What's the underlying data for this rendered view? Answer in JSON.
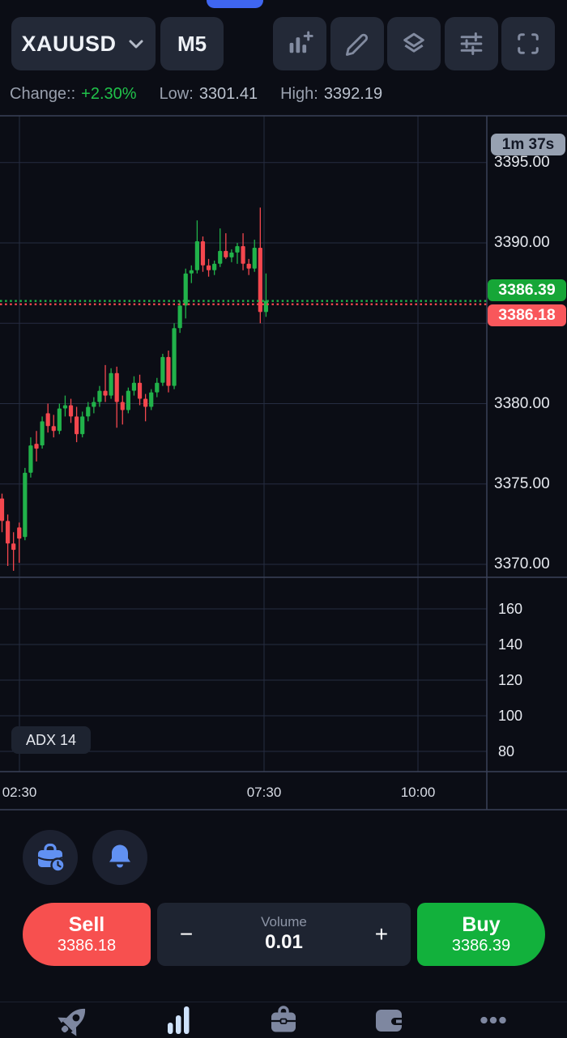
{
  "header": {
    "symbol": "XAUUSD",
    "timeframe": "M5",
    "stats": {
      "change_label": "Change::",
      "change_value": "+2.30%",
      "low_label": "Low:",
      "low_value": "3301.41",
      "high_label": "High:",
      "high_value": "3392.19"
    }
  },
  "chart": {
    "timer": "1m 37s",
    "ask_badge": "3386.39",
    "bid_badge": "3386.18",
    "indicator_badge": "ADX 14"
  },
  "chart_data": {
    "type": "candlestick",
    "symbol": "XAUUSD",
    "interval": "M5",
    "ask": 3386.39,
    "bid": 3386.18,
    "price_ylim": [
      3369.5,
      3397.9
    ],
    "grid": true,
    "price_gridlines": [
      3395,
      3390,
      3385,
      3380,
      3375,
      3370
    ],
    "price_labels": [
      {
        "text": "3395.00",
        "value": 3395
      },
      {
        "text": "3390.00",
        "value": 3390
      },
      {
        "text": "3380.00",
        "value": 3380
      },
      {
        "text": "3375.00",
        "value": 3375
      },
      {
        "text": "3370.00",
        "value": 3370
      }
    ],
    "time_labels": [
      {
        "text": "02:30",
        "x": 24
      },
      {
        "text": "07:30",
        "x": 326
      },
      {
        "text": "10:00",
        "x": 516
      }
    ],
    "vertical_gridlines_x": [
      24,
      326,
      516
    ],
    "indicator": {
      "name": "ADX",
      "period": 14,
      "ylim": [
        70,
        170
      ],
      "ticks": [
        {
          "text": "160",
          "value": 160
        },
        {
          "text": "140",
          "value": 140
        },
        {
          "text": "120",
          "value": 120
        },
        {
          "text": "100",
          "value": 100
        },
        {
          "text": "80",
          "value": 80
        }
      ]
    },
    "candles_ohlc": [
      [
        3374.1,
        3374.4,
        3372.0,
        3372.7
      ],
      [
        3372.7,
        3373.1,
        3369.9,
        3371.3
      ],
      [
        3371.3,
        3372.0,
        3369.6,
        3370.9
      ],
      [
        3372.3,
        3372.6,
        3370.1,
        3371.6
      ],
      [
        3371.7,
        3376.0,
        3371.5,
        3375.7
      ],
      [
        3375.7,
        3377.9,
        3375.4,
        3377.4
      ],
      [
        3377.5,
        3378.3,
        3376.4,
        3377.2
      ],
      [
        3377.4,
        3379.2,
        3377.2,
        3378.9
      ],
      [
        3379.4,
        3380.0,
        3378.2,
        3378.6
      ],
      [
        3378.6,
        3379.3,
        3377.9,
        3378.3
      ],
      [
        3378.3,
        3380.0,
        3378.1,
        3379.7
      ],
      [
        3379.7,
        3380.5,
        3379.2,
        3379.9
      ],
      [
        3379.9,
        3380.3,
        3378.8,
        3379.2
      ],
      [
        3379.2,
        3379.8,
        3377.6,
        3378.1
      ],
      [
        3378.1,
        3379.5,
        3377.9,
        3379.2
      ],
      [
        3379.2,
        3380.1,
        3378.9,
        3379.8
      ],
      [
        3379.8,
        3380.4,
        3379.4,
        3380.1
      ],
      [
        3380.1,
        3381.1,
        3379.8,
        3380.8
      ],
      [
        3380.8,
        3382.4,
        3380.1,
        3380.5
      ],
      [
        3380.5,
        3382.2,
        3380.3,
        3381.9
      ],
      [
        3381.9,
        3382.3,
        3378.5,
        3380.1
      ],
      [
        3380.1,
        3380.5,
        3378.7,
        3379.6
      ],
      [
        3379.6,
        3381.0,
        3379.4,
        3380.8
      ],
      [
        3380.8,
        3381.7,
        3380.5,
        3381.3
      ],
      [
        3381.3,
        3381.8,
        3379.9,
        3380.3
      ],
      [
        3380.3,
        3380.6,
        3378.9,
        3379.8
      ],
      [
        3379.8,
        3380.9,
        3379.6,
        3380.7
      ],
      [
        3380.7,
        3381.6,
        3380.4,
        3381.3
      ],
      [
        3381.3,
        3383.1,
        3381.1,
        3382.9
      ],
      [
        3382.9,
        3383.3,
        3380.7,
        3381.1
      ],
      [
        3381.1,
        3385.0,
        3380.9,
        3384.7
      ],
      [
        3384.7,
        3386.4,
        3384.4,
        3386.1
      ],
      [
        3386.1,
        3388.4,
        3385.3,
        3388.1
      ],
      [
        3388.1,
        3388.6,
        3387.5,
        3388.3
      ],
      [
        3388.3,
        3391.4,
        3388.1,
        3390.1
      ],
      [
        3390.1,
        3390.4,
        3388.2,
        3388.6
      ],
      [
        3388.6,
        3389.0,
        3387.9,
        3388.3
      ],
      [
        3388.3,
        3388.9,
        3388.0,
        3388.7
      ],
      [
        3388.7,
        3390.9,
        3388.5,
        3389.5
      ],
      [
        3389.5,
        3390.6,
        3389.0,
        3389.1
      ],
      [
        3389.1,
        3389.6,
        3388.8,
        3389.4
      ],
      [
        3389.4,
        3390.0,
        3388.7,
        3389.8
      ],
      [
        3389.8,
        3390.6,
        3388.3,
        3388.7
      ],
      [
        3388.7,
        3389.0,
        3388.0,
        3388.4
      ],
      [
        3388.4,
        3390.2,
        3388.2,
        3389.7
      ],
      [
        3389.7,
        3392.2,
        3385.0,
        3385.7
      ],
      [
        3385.7,
        3388.1,
        3385.4,
        3386.4
      ]
    ],
    "colors": {
      "up": "#21b24a",
      "down": "#f4474e",
      "ask_line": "#1db44a",
      "bid_line": "#f4474e",
      "grid": "#262d41",
      "border": "#3a4158"
    }
  },
  "trade": {
    "sell_label": "Sell",
    "sell_price": "3386.18",
    "minus": "−",
    "plus": "+",
    "volume_label": "Volume",
    "volume_value": "0.01",
    "buy_label": "Buy",
    "buy_price": "3386.39"
  },
  "colors": {
    "accent_blue": "#6191f2",
    "notch_blue": "#3f66f0",
    "sell_red": "#f7504f",
    "buy_green": "#12b13c",
    "badge_green": "#16a637",
    "badge_red": "#f9575b",
    "timer_bg": "#97a1b1",
    "nav_active": "#cfe2fb",
    "nav_inactive": "#7e87a0"
  }
}
